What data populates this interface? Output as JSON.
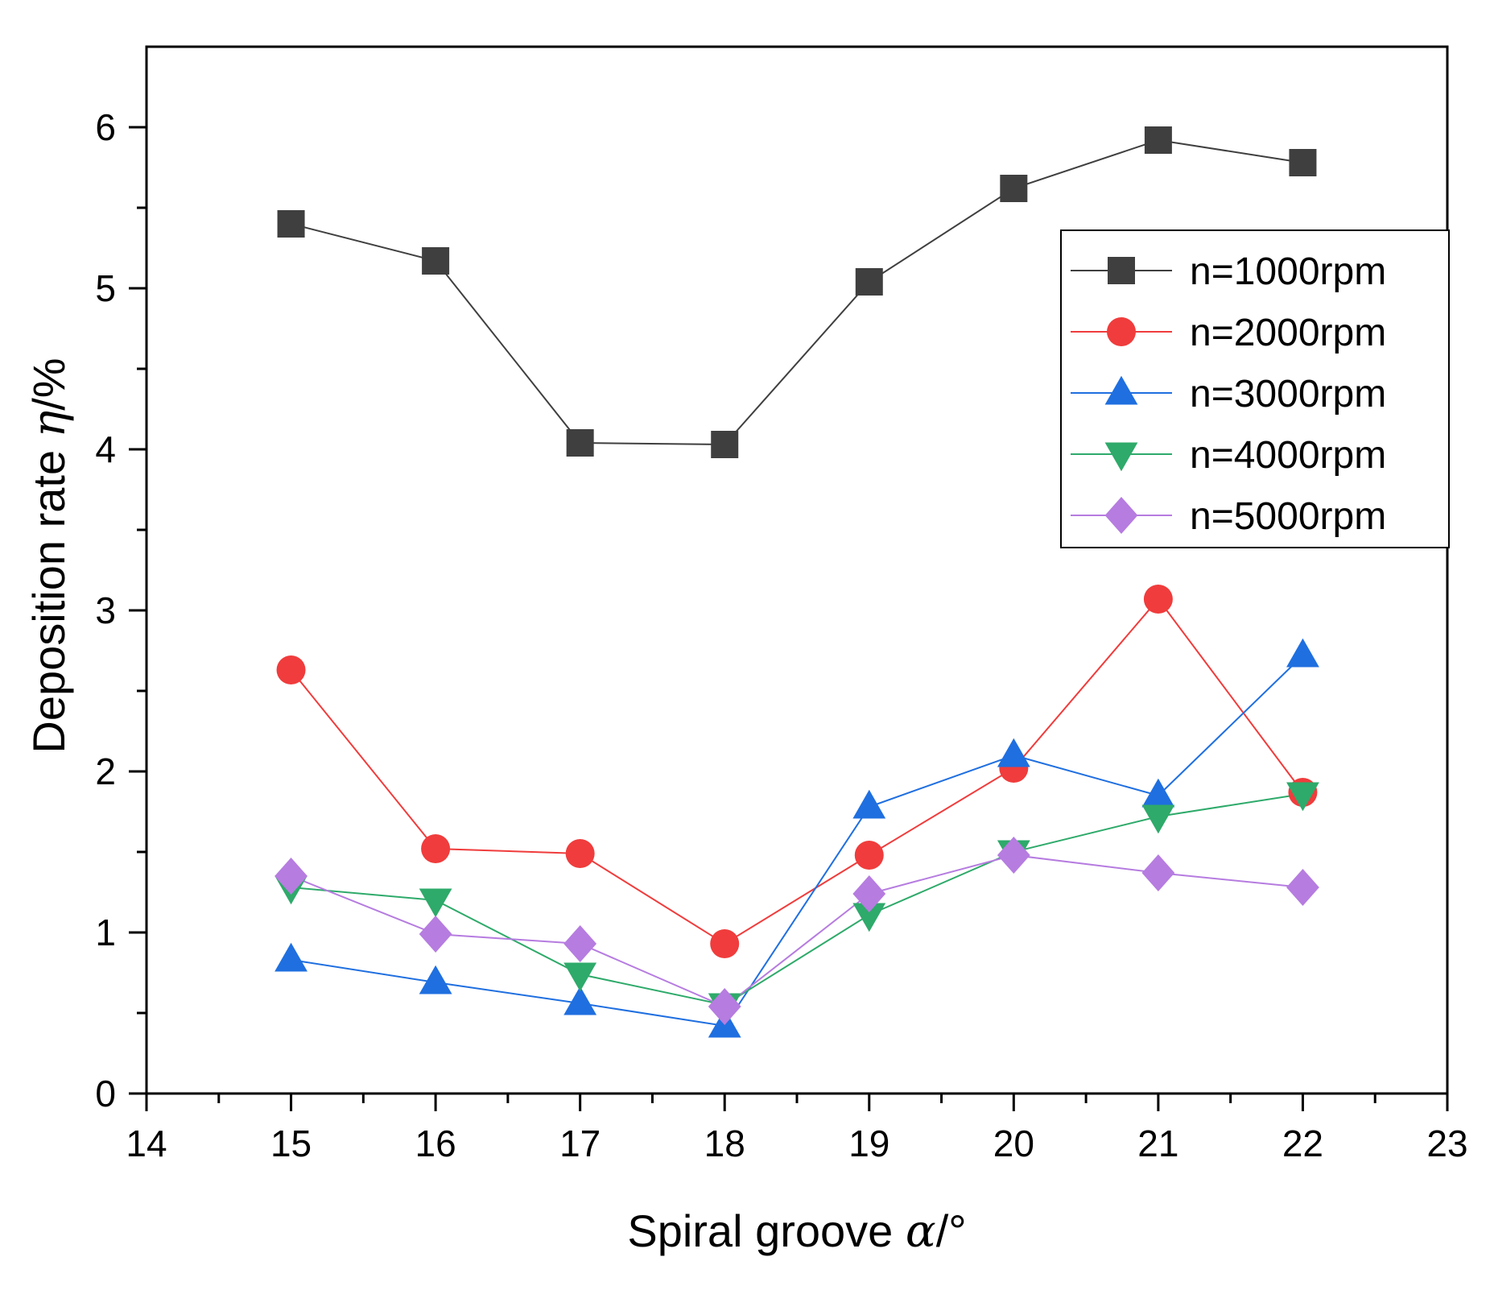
{
  "chart_data": {
    "type": "line",
    "xlabel": {
      "prefix": "Spiral groove ",
      "symbol": "α",
      "suffix": "/°"
    },
    "ylabel": {
      "prefix": "Deposition rate ",
      "symbol": "η",
      "suffix": "/%"
    },
    "xlim": [
      14,
      23
    ],
    "ylim": [
      0,
      6.5
    ],
    "x_ticks": [
      "14",
      "15",
      "16",
      "17",
      "18",
      "19",
      "20",
      "21",
      "22",
      "23"
    ],
    "y_ticks": [
      "0",
      "1",
      "2",
      "3",
      "4",
      "5",
      "6"
    ],
    "x": [
      15,
      16,
      17,
      18,
      19,
      20,
      21,
      22
    ],
    "legend_position": "upper-right",
    "series": [
      {
        "name": "n=1000rpm",
        "color": "#3f3f3f",
        "marker": "square",
        "values": [
          5.4,
          5.17,
          4.04,
          4.03,
          5.04,
          5.62,
          5.92,
          5.78
        ]
      },
      {
        "name": "n=2000rpm",
        "color": "#f03c3c",
        "marker": "circle",
        "values": [
          2.63,
          1.52,
          1.49,
          0.93,
          1.48,
          2.02,
          3.07,
          1.87
        ]
      },
      {
        "name": "n=3000rpm",
        "color": "#1f6fe0",
        "marker": "triangle-up",
        "values": [
          0.83,
          0.69,
          0.56,
          0.42,
          1.78,
          2.1,
          1.85,
          2.72
        ]
      },
      {
        "name": "n=4000rpm",
        "color": "#2eaa6a",
        "marker": "triangle-down",
        "values": [
          1.28,
          1.2,
          0.74,
          0.55,
          1.11,
          1.5,
          1.72,
          1.86
        ]
      },
      {
        "name": "n=5000rpm",
        "color": "#b67ce0",
        "marker": "diamond",
        "values": [
          1.35,
          0.99,
          0.93,
          0.54,
          1.24,
          1.48,
          1.37,
          1.28
        ]
      }
    ]
  }
}
